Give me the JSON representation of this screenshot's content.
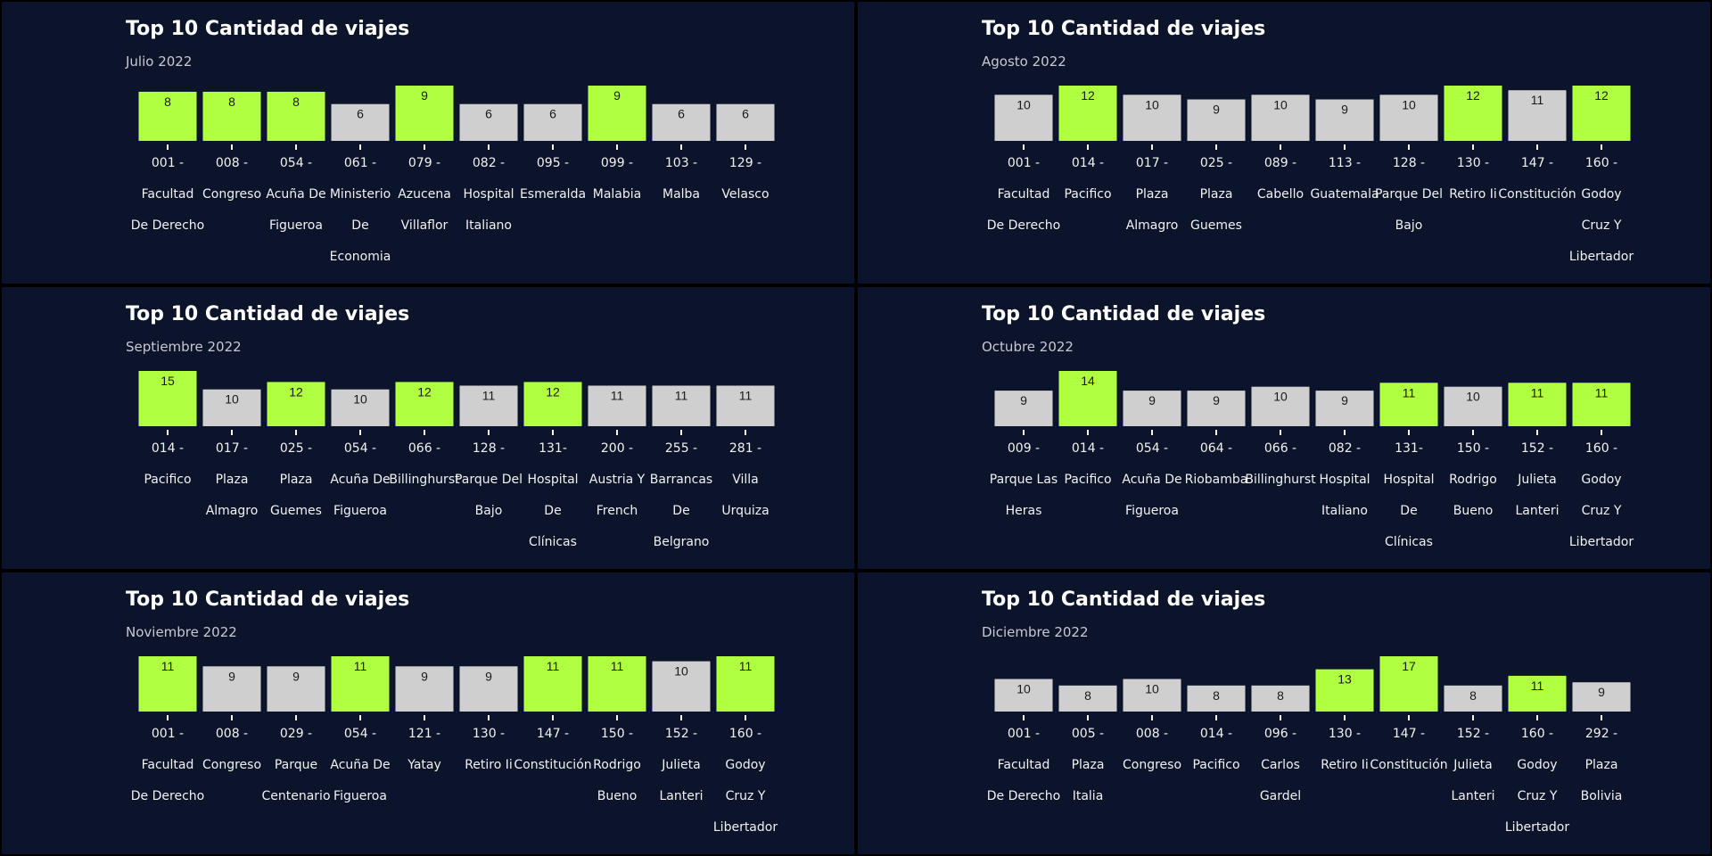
{
  "colors": {
    "background": "#0c142b",
    "frame": "#000000",
    "highlight": "#b1ff41",
    "default_bar": "#cfcfcf",
    "title": "#ffffff",
    "subtitle": "#c9c9d4",
    "tick_text": "#f2f2f2"
  },
  "chart_data": [
    {
      "type": "bar",
      "title": "Top 10 Cantidad de viajes",
      "subtitle": "Julio 2022",
      "categories": [
        [
          "001 -",
          "Facultad",
          "De Derecho"
        ],
        [
          "008 -",
          "Congreso"
        ],
        [
          "054 -",
          "Acuña De",
          "Figueroa"
        ],
        [
          "061 -",
          "Ministerio",
          "De",
          "Economia"
        ],
        [
          "079 -",
          "Azucena",
          "Villaflor"
        ],
        [
          "082 -",
          "Hospital",
          "Italiano"
        ],
        [
          "095 -",
          "Esmeralda"
        ],
        [
          "099 -",
          "Malabia"
        ],
        [
          "103 -",
          "Malba"
        ],
        [
          "129 -",
          "Velasco"
        ]
      ],
      "values": [
        8,
        8,
        8,
        6,
        9,
        6,
        6,
        9,
        6,
        6
      ],
      "highlighted": [
        true,
        true,
        true,
        false,
        true,
        false,
        false,
        true,
        false,
        false
      ],
      "ylim": [
        0,
        9
      ],
      "grid": false
    },
    {
      "type": "bar",
      "title": "Top 10 Cantidad de viajes",
      "subtitle": "Agosto 2022",
      "categories": [
        [
          "001 -",
          "Facultad",
          "De Derecho"
        ],
        [
          "014 -",
          "Pacifico"
        ],
        [
          "017 -",
          "Plaza",
          "Almagro"
        ],
        [
          "025 -",
          "Plaza",
          "Guemes"
        ],
        [
          "089 -",
          "Cabello"
        ],
        [
          "113 -",
          "Guatemala"
        ],
        [
          "128 -",
          "Parque Del",
          "Bajo"
        ],
        [
          "130 -",
          "Retiro Ii"
        ],
        [
          "147 -",
          "Constitución"
        ],
        [
          "160 -",
          "Godoy",
          "Cruz Y",
          "Libertador"
        ]
      ],
      "values": [
        10,
        12,
        10,
        9,
        10,
        9,
        10,
        12,
        11,
        12
      ],
      "highlighted": [
        false,
        true,
        false,
        false,
        false,
        false,
        false,
        true,
        false,
        true
      ],
      "ylim": [
        0,
        12
      ],
      "grid": false
    },
    {
      "type": "bar",
      "title": "Top 10 Cantidad de viajes",
      "subtitle": "Septiembre 2022",
      "categories": [
        [
          "014 -",
          "Pacifico"
        ],
        [
          "017 -",
          "Plaza",
          "Almagro"
        ],
        [
          "025 -",
          "Plaza",
          "Guemes"
        ],
        [
          "054 -",
          "Acuña De",
          "Figueroa"
        ],
        [
          "066 -",
          "Billinghurst"
        ],
        [
          "128 -",
          "Parque Del",
          "Bajo"
        ],
        [
          "131-",
          "Hospital",
          "De",
          "Clínicas"
        ],
        [
          "200 -",
          "Austria Y",
          "French"
        ],
        [
          "255 -",
          "Barrancas",
          "De",
          "Belgrano"
        ],
        [
          "281 -",
          "Villa",
          "Urquiza"
        ]
      ],
      "values": [
        15,
        10,
        12,
        10,
        12,
        11,
        12,
        11,
        11,
        11
      ],
      "highlighted": [
        true,
        false,
        true,
        false,
        true,
        false,
        true,
        false,
        false,
        false
      ],
      "ylim": [
        0,
        15
      ],
      "grid": false
    },
    {
      "type": "bar",
      "title": "Top 10 Cantidad de viajes",
      "subtitle": "Octubre 2022",
      "categories": [
        [
          "009 -",
          "Parque Las",
          "Heras"
        ],
        [
          "014 -",
          "Pacifico"
        ],
        [
          "054 -",
          "Acuña De",
          "Figueroa"
        ],
        [
          "064 -",
          "Riobamba"
        ],
        [
          "066 -",
          "Billinghurst"
        ],
        [
          "082 -",
          "Hospital",
          "Italiano"
        ],
        [
          "131-",
          "Hospital",
          "De",
          "Clínicas"
        ],
        [
          "150 -",
          "Rodrigo",
          "Bueno"
        ],
        [
          "152 -",
          "Julieta",
          "Lanteri"
        ],
        [
          "160 -",
          "Godoy",
          "Cruz Y",
          "Libertador"
        ]
      ],
      "values": [
        9,
        14,
        9,
        9,
        10,
        9,
        11,
        10,
        11,
        11
      ],
      "highlighted": [
        false,
        true,
        false,
        false,
        false,
        false,
        true,
        false,
        true,
        true
      ],
      "ylim": [
        0,
        14
      ],
      "grid": false
    },
    {
      "type": "bar",
      "title": "Top 10 Cantidad de viajes",
      "subtitle": "Noviembre 2022",
      "categories": [
        [
          "001 -",
          "Facultad",
          "De Derecho"
        ],
        [
          "008 -",
          "Congreso"
        ],
        [
          "029 -",
          "Parque",
          "Centenario"
        ],
        [
          "054 -",
          "Acuña De",
          "Figueroa"
        ],
        [
          "121 -",
          "Yatay"
        ],
        [
          "130 -",
          "Retiro Ii"
        ],
        [
          "147 -",
          "Constitución"
        ],
        [
          "150 -",
          "Rodrigo",
          "Bueno"
        ],
        [
          "152 -",
          "Julieta",
          "Lanteri"
        ],
        [
          "160 -",
          "Godoy",
          "Cruz Y",
          "Libertador"
        ]
      ],
      "values": [
        11,
        9,
        9,
        11,
        9,
        9,
        11,
        11,
        10,
        11
      ],
      "highlighted": [
        true,
        false,
        false,
        true,
        false,
        false,
        true,
        true,
        false,
        true
      ],
      "ylim": [
        0,
        11
      ],
      "grid": false
    },
    {
      "type": "bar",
      "title": "Top 10 Cantidad de viajes",
      "subtitle": "Diciembre 2022",
      "categories": [
        [
          "001 -",
          "Facultad",
          "De Derecho"
        ],
        [
          "005 -",
          "Plaza",
          "Italia"
        ],
        [
          "008 -",
          "Congreso"
        ],
        [
          "014 -",
          "Pacifico"
        ],
        [
          "096 -",
          "Carlos",
          "Gardel"
        ],
        [
          "130 -",
          "Retiro Ii"
        ],
        [
          "147 -",
          "Constitución"
        ],
        [
          "152 -",
          "Julieta",
          "Lanteri"
        ],
        [
          "160 -",
          "Godoy",
          "Cruz Y",
          "Libertador"
        ],
        [
          "292 -",
          "Plaza",
          "Bolivia"
        ]
      ],
      "values": [
        10,
        8,
        10,
        8,
        8,
        13,
        17,
        8,
        11,
        9
      ],
      "highlighted": [
        false,
        false,
        false,
        false,
        false,
        true,
        true,
        false,
        true,
        false
      ],
      "ylim": [
        0,
        17
      ],
      "grid": false
    }
  ]
}
